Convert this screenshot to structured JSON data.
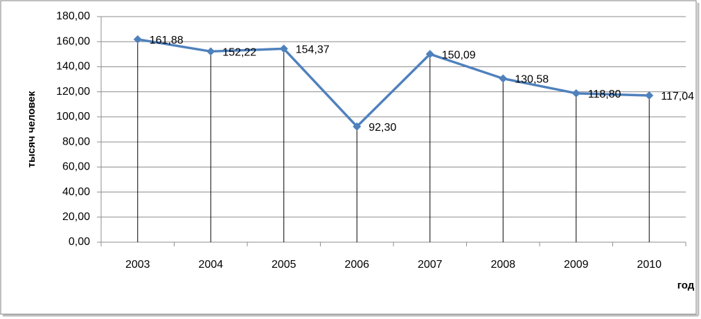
{
  "chart_data": {
    "type": "line",
    "y_label": "тысяч человек",
    "x_label": "год",
    "categories": [
      "2003",
      "2004",
      "2005",
      "2006",
      "2007",
      "2008",
      "2009",
      "2010"
    ],
    "series": [
      {
        "name": "тысяч человек",
        "color": "#4f81bd",
        "values": [
          161.88,
          152.22,
          154.37,
          92.3,
          150.09,
          130.58,
          118.8,
          117.04
        ],
        "value_labels": [
          "161,88",
          "152,22",
          "154,37",
          "92,30",
          "150,09",
          "130,58",
          "118,80",
          "117,04"
        ]
      }
    ],
    "ylim": [
      0,
      180
    ],
    "yticks": [
      {
        "value": 0,
        "label": "0,00"
      },
      {
        "value": 20,
        "label": "20,00"
      },
      {
        "value": 40,
        "label": "40,00"
      },
      {
        "value": 60,
        "label": "60,00"
      },
      {
        "value": 80,
        "label": "80,00"
      },
      {
        "value": 100,
        "label": "100,00"
      },
      {
        "value": 120,
        "label": "120,00"
      },
      {
        "value": 140,
        "label": "140,00"
      },
      {
        "value": 160,
        "label": "160,00"
      },
      {
        "value": 180,
        "label": "180,00"
      }
    ],
    "grid": true,
    "drop_lines": true
  }
}
